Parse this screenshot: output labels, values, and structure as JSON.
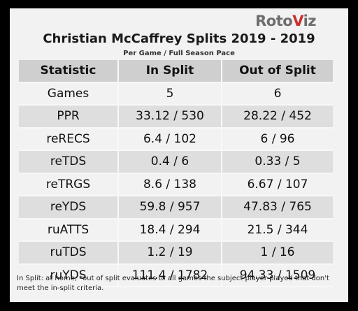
{
  "logo": {
    "part1": "Roto",
    "part2": "V",
    "part3": "iz"
  },
  "title": "Christian McCaffrey Splits 2019 - 2019",
  "subtitle": "Per Game / Full Season Pace",
  "table": {
    "headers": [
      "Statistic",
      "In Split",
      "Out of Split"
    ],
    "rows": [
      [
        "Games",
        "5",
        "6"
      ],
      [
        "PPR",
        "33.12 / 530",
        "28.22 / 452"
      ],
      [
        "reRECS",
        "6.4 / 102",
        "6 / 96"
      ],
      [
        "reTDS",
        "0.4 / 6",
        "0.33 / 5"
      ],
      [
        "reTRGS",
        "8.6 / 138",
        "6.67 / 107"
      ],
      [
        "reYDS",
        "59.8 / 957",
        "47.83 / 765"
      ],
      [
        "ruATTS",
        "18.4 / 294",
        "21.5 / 344"
      ],
      [
        "ruTDS",
        "1.2 / 19",
        "1 / 16"
      ],
      [
        "ruYDS",
        "111.4 / 1782",
        "94.33 / 1509"
      ]
    ]
  },
  "footnote": "In Split: at home,  *out of split evaluates to all games the subject player played that don't meet the in-split criteria.",
  "colors": {
    "header_bg": "#cfcfcf",
    "row_alt": "#dedede",
    "row": "#f2f2f2",
    "logo_accent": "#c8312e"
  }
}
